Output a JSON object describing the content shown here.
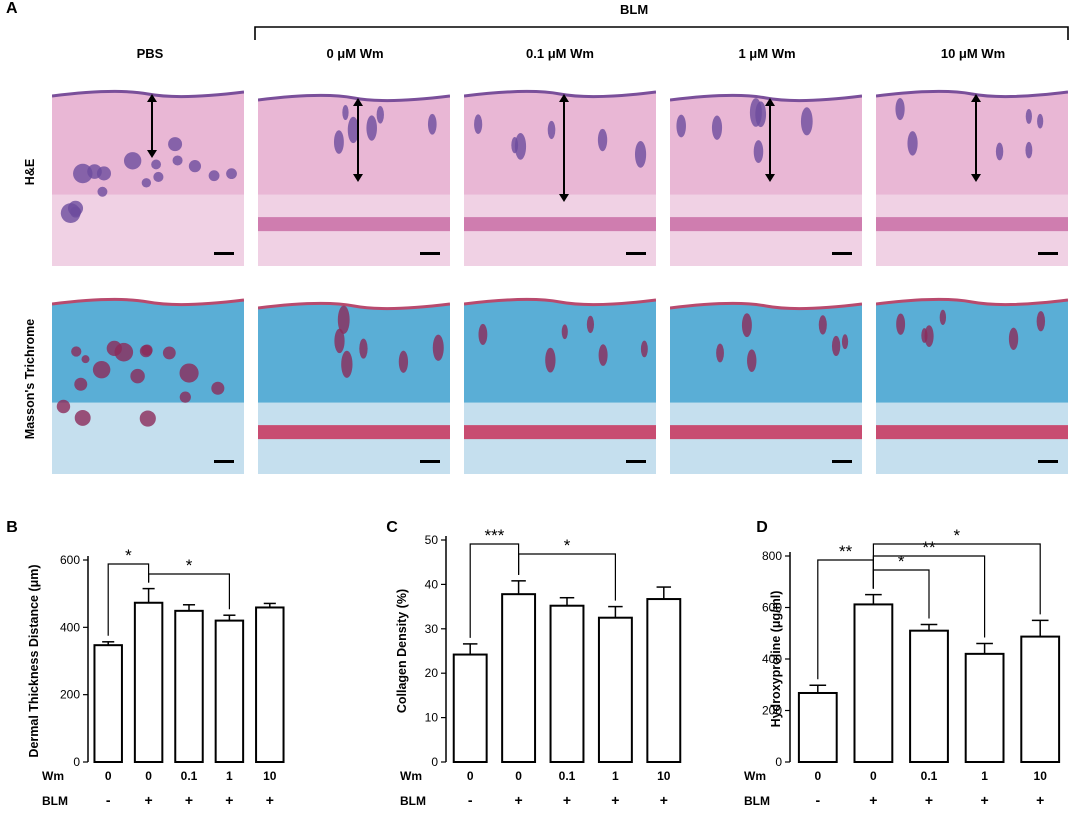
{
  "panel_a": {
    "letter": "A",
    "group_label": "BLM",
    "columns": [
      "PBS",
      "0 μM Wm",
      "0.1 μM Wm",
      "1 μM Wm",
      "10 μM Wm"
    ],
    "rows": [
      "H&E",
      "Masson's Trichrome"
    ],
    "he_colors": {
      "dermis": "#e9b7d5",
      "epidermis": "#7a4f9a",
      "follicle": "#6d4c9e",
      "muscle": "#c96fa6"
    },
    "mt_colors": {
      "collagen": "#5aaed6",
      "epidermis": "#b84a6e",
      "follicle": "#8b2b5a",
      "muscle": "#c8325a"
    }
  },
  "chart_data": [
    {
      "letter": "B",
      "type": "bar",
      "categories": [
        "0",
        "0",
        "0.1",
        "1",
        "10"
      ],
      "blm": [
        "-",
        "+",
        "+",
        "+",
        "+"
      ],
      "row_labels": [
        "Wm",
        "BLM"
      ],
      "values": [
        347,
        473,
        449,
        420,
        459
      ],
      "errors": [
        10,
        42,
        18,
        16,
        12
      ],
      "ylabel": "Dermal Thickness Distance (μm)",
      "ylim": [
        0,
        600
      ],
      "yticks": [
        "0",
        "200",
        "400",
        "600"
      ],
      "significance": [
        {
          "from": 0,
          "to": 1,
          "label": "*"
        },
        {
          "from": 1,
          "to": 3,
          "label": "*"
        }
      ]
    },
    {
      "letter": "C",
      "type": "bar",
      "categories": [
        "0",
        "0",
        "0.1",
        "1",
        "10"
      ],
      "blm": [
        "-",
        "+",
        "+",
        "+",
        "+"
      ],
      "row_labels": [
        "Wm",
        "BLM"
      ],
      "values": [
        24.2,
        37.8,
        35.2,
        32.5,
        36.7
      ],
      "errors": [
        2.4,
        3.0,
        1.8,
        2.5,
        2.7
      ],
      "ylabel": "Collagen Density (%)",
      "ylim": [
        0,
        50
      ],
      "yticks": [
        "0",
        "10",
        "20",
        "30",
        "40",
        "50"
      ],
      "significance": [
        {
          "from": 0,
          "to": 1,
          "label": "***"
        },
        {
          "from": 1,
          "to": 3,
          "label": "*"
        }
      ]
    },
    {
      "letter": "D",
      "type": "bar",
      "categories": [
        "0",
        "0",
        "0.1",
        "1",
        "10"
      ],
      "blm": [
        "-",
        "+",
        "+",
        "+",
        "+"
      ],
      "row_labels": [
        "Wm",
        "BLM"
      ],
      "values": [
        268,
        612,
        510,
        420,
        487
      ],
      "errors": [
        30,
        38,
        24,
        40,
        63
      ],
      "ylabel": "Hydroxyproline (μg/ml)",
      "ylim": [
        0,
        800
      ],
      "yticks": [
        "0",
        "200",
        "400",
        "600",
        "800"
      ],
      "significance": [
        {
          "from": 0,
          "to": 1,
          "label": "**"
        },
        {
          "from": 1,
          "to": 2,
          "label": "*"
        },
        {
          "from": 1,
          "to": 3,
          "label": "**"
        },
        {
          "from": 1,
          "to": 4,
          "label": "*"
        }
      ]
    }
  ]
}
